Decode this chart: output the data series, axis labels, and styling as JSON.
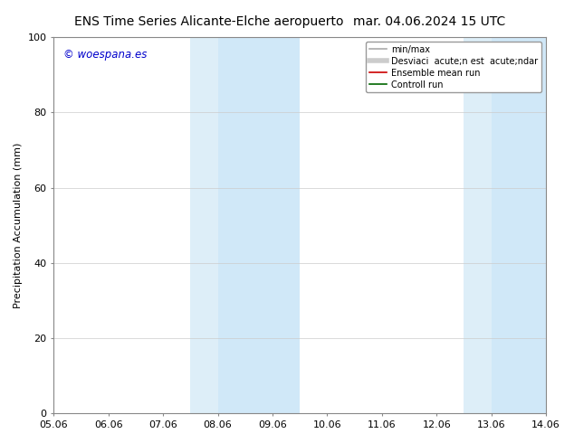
{
  "title_left": "ENS Time Series Alicante-Elche aeropuerto",
  "title_right": "mar. 04.06.2024 15 UTC",
  "ylabel": "Precipitation Accumulation (mm)",
  "xlim": [
    0,
    9
  ],
  "ylim": [
    0,
    100
  ],
  "yticks": [
    0,
    20,
    40,
    60,
    80,
    100
  ],
  "xtick_labels": [
    "05.06",
    "06.06",
    "07.06",
    "08.06",
    "09.06",
    "10.06",
    "11.06",
    "12.06",
    "13.06",
    "14.06"
  ],
  "xtick_positions": [
    0,
    1,
    2,
    3,
    4,
    5,
    6,
    7,
    8,
    9
  ],
  "shade_regions": [
    {
      "xmin": 2.5,
      "xmax": 3.0,
      "color": "#ddeef8"
    },
    {
      "xmin": 3.0,
      "xmax": 4.5,
      "color": "#d0e8f8"
    },
    {
      "xmin": 7.5,
      "xmax": 8.0,
      "color": "#ddeef8"
    },
    {
      "xmin": 8.0,
      "xmax": 9.0,
      "color": "#d0e8f8"
    }
  ],
  "watermark_text": "© woespana.es",
  "watermark_color": "#0000cc",
  "legend_entries": [
    {
      "label": "min/max",
      "color": "#aaaaaa",
      "lw": 1.2,
      "type": "line"
    },
    {
      "label": "Desviaci  acute;n est  acute;ndar",
      "color": "#cccccc",
      "lw": 4,
      "type": "line"
    },
    {
      "label": "Ensemble mean run",
      "color": "#cc0000",
      "lw": 1.2,
      "type": "line"
    },
    {
      "label": "Controll run",
      "color": "#006600",
      "lw": 1.2,
      "type": "line"
    }
  ],
  "bg_color": "#ffffff",
  "plot_bg_color": "#ffffff",
  "grid_color": "#cccccc",
  "title_fontsize": 10,
  "tick_fontsize": 8,
  "ylabel_fontsize": 8,
  "legend_fontsize": 7
}
